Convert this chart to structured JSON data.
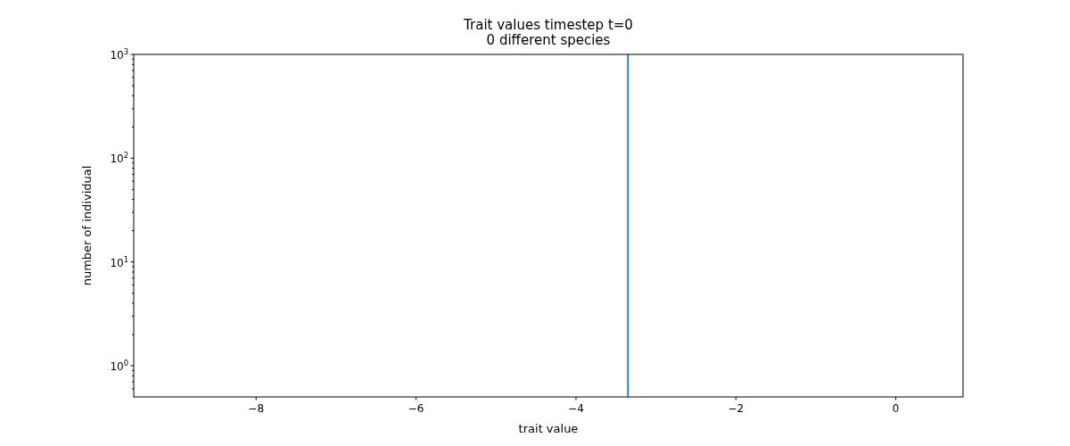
{
  "chart_data": {
    "type": "histogram",
    "title": "Trait values timestep t=0\n0 different species",
    "xlabel": "trait value",
    "ylabel": "number of individual",
    "bins": [
      -3.36,
      -3.34
    ],
    "values": [
      1000
    ],
    "color": "#1f77b4",
    "log": "y",
    "xlim": [
      -9.53,
      0.84
    ],
    "ylim": [
      0.5,
      1000
    ],
    "xticks": [
      {
        "value": -8,
        "label": "−8"
      },
      {
        "value": -6,
        "label": "−6"
      },
      {
        "value": -4,
        "label": "−4"
      },
      {
        "value": -2,
        "label": "−2"
      },
      0
    ],
    "yticks": [
      {
        "value": 0.6,
        "label": null
      },
      {
        "value": 0.7,
        "label": null
      },
      {
        "value": 0.8,
        "label": null
      },
      {
        "value": 0.9,
        "label": null
      },
      {
        "value": 1,
        "label": "10$^{0}$"
      },
      {
        "value": 2,
        "label": null
      },
      {
        "value": 3,
        "label": null
      },
      {
        "value": 4,
        "label": null
      },
      {
        "value": 5,
        "label": null
      },
      {
        "value": 6,
        "label": null
      },
      {
        "value": 7,
        "label": null
      },
      {
        "value": 8,
        "label": null
      },
      {
        "value": 9,
        "label": null
      },
      {
        "value": 10,
        "label": "10$^{1}$"
      },
      {
        "value": 20,
        "label": null
      },
      {
        "value": 30,
        "label": null
      },
      {
        "value": 40,
        "label": null
      },
      {
        "value": 50,
        "label": null
      },
      {
        "value": 60,
        "label": null
      },
      {
        "value": 70,
        "label": null
      },
      {
        "value": 80,
        "label": null
      },
      {
        "value": 90,
        "label": null
      },
      {
        "value": 100,
        "label": "10$^{2}$"
      },
      {
        "value": 200,
        "label": null
      },
      {
        "value": 300,
        "label": null
      },
      {
        "value": 400,
        "label": null
      },
      {
        "value": 500,
        "label": null
      },
      {
        "value": 600,
        "label": null
      },
      {
        "value": 700,
        "label": null
      },
      {
        "value": 800,
        "label": null
      },
      {
        "value": 900,
        "label": null
      },
      {
        "value": 1000,
        "label": "10$^{3}$"
      }
    ],
    "grid": false
  }
}
